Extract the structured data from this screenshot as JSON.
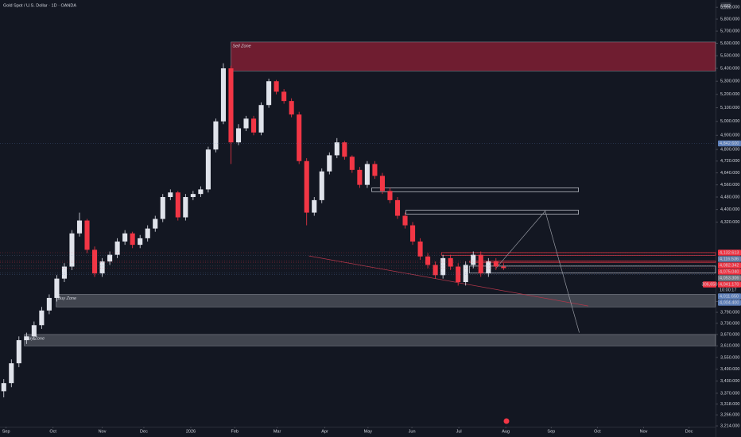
{
  "chart_data": {
    "type": "candlestick",
    "title": "Gold Spot / U.S. Dollar · 1D · OANDA",
    "currency": "USD",
    "log_scale": true,
    "up_color": "#e0e3eb",
    "down_color": "#f23645",
    "open": [
      3380,
      3420,
      3520,
      3640,
      3660,
      3720,
      3800,
      3870,
      3980,
      4050,
      4250,
      4330,
      4150,
      4010,
      4080,
      4120,
      4200,
      4250,
      4180,
      4220,
      4280,
      4340,
      4480,
      4510,
      4350,
      4480,
      4500,
      4530,
      4800,
      5000,
      5400,
      4850,
      4950,
      5020,
      4920,
      5120,
      5300,
      5220,
      5150,
      5050,
      4720,
      4380,
      4460,
      4650,
      4760,
      4850,
      4750,
      4660,
      4560,
      4700,
      4620,
      4520,
      4460,
      4360,
      4300,
      4200,
      4110,
      4060,
      4000,
      4100,
      4050,
      3960,
      4060,
      4120,
      4010,
      4080,
      4050
    ],
    "high": [
      3440,
      3540,
      3660,
      3680,
      3740,
      3820,
      3890,
      4000,
      4070,
      4270,
      4380,
      4340,
      4170,
      4100,
      4140,
      4220,
      4270,
      4260,
      4240,
      4300,
      4360,
      4500,
      4530,
      4520,
      4500,
      4520,
      4550,
      4820,
      5020,
      5440,
      5420,
      4980,
      5040,
      5040,
      5140,
      5320,
      5310,
      5240,
      5170,
      5070,
      4740,
      4480,
      4670,
      4780,
      4880,
      4860,
      4760,
      4680,
      4720,
      4720,
      4640,
      4540,
      4480,
      4380,
      4320,
      4220,
      4130,
      4080,
      4120,
      4120,
      4070,
      4080,
      4140,
      4140,
      4100,
      4100,
      4070
    ],
    "low": [
      3350,
      3400,
      3500,
      3620,
      3640,
      3700,
      3780,
      3850,
      3960,
      4030,
      4230,
      4130,
      3990,
      3990,
      4060,
      4100,
      4180,
      4160,
      4160,
      4200,
      4260,
      4320,
      4460,
      4330,
      4330,
      4460,
      4480,
      4510,
      4780,
      4980,
      4700,
      4830,
      4930,
      4900,
      4900,
      5100,
      5200,
      5130,
      5030,
      4700,
      4300,
      4360,
      4440,
      4630,
      4740,
      4730,
      4640,
      4540,
      4540,
      4600,
      4500,
      4440,
      4340,
      4280,
      4180,
      4090,
      4040,
      3980,
      3980,
      4030,
      3940,
      3940,
      4040,
      3990,
      3990,
      4030,
      4030
    ],
    "close": [
      3420,
      3520,
      3640,
      3660,
      3720,
      3800,
      3870,
      3980,
      4050,
      4250,
      4330,
      4150,
      4010,
      4080,
      4120,
      4200,
      4250,
      4180,
      4220,
      4280,
      4340,
      4480,
      4510,
      4350,
      4480,
      4500,
      4530,
      4800,
      5000,
      5400,
      4850,
      4950,
      5020,
      4920,
      5120,
      5300,
      5220,
      5150,
      5050,
      4720,
      4380,
      4460,
      4650,
      4760,
      4850,
      4750,
      4660,
      4560,
      4700,
      4620,
      4520,
      4460,
      4360,
      4300,
      4200,
      4110,
      4060,
      4000,
      4100,
      4050,
      3960,
      4060,
      4120,
      4010,
      4080,
      4050,
      4041.17
    ],
    "xlim": [
      -0.5,
      94
    ],
    "xticks": [
      {
        "value": 0.3,
        "label": "Sep"
      },
      {
        "value": 6.5,
        "label": "Oct"
      },
      {
        "value": 13,
        "label": "Nov"
      },
      {
        "value": 18.5,
        "label": "Dec"
      },
      {
        "value": 24.7,
        "label": "2026"
      },
      {
        "value": 30.5,
        "label": "Feb"
      },
      {
        "value": 36.1,
        "label": "Mar"
      },
      {
        "value": 42.4,
        "label": "Apr"
      },
      {
        "value": 48.1,
        "label": "May"
      },
      {
        "value": 53.9,
        "label": "Jun"
      },
      {
        "value": 60.1,
        "label": "Jul"
      },
      {
        "value": 66.3,
        "label": "Aug"
      },
      {
        "value": 72.3,
        "label": "Sep"
      },
      {
        "value": 78.4,
        "label": "Oct"
      },
      {
        "value": 84.5,
        "label": "Nov"
      },
      {
        "value": 90.5,
        "label": "Dec"
      }
    ],
    "ylim": [
      3181,
      5963
    ],
    "yticks": [
      {
        "value": 5900,
        "label": "5,900.000"
      },
      {
        "value": 5800,
        "label": "5,800.000"
      },
      {
        "value": 5700,
        "label": "5,700.000"
      },
      {
        "value": 5600,
        "label": "5,600.000"
      },
      {
        "value": 5500,
        "label": "5,500.000"
      },
      {
        "value": 5400,
        "label": "5,400.000"
      },
      {
        "value": 5300,
        "label": "5,300.000"
      },
      {
        "value": 5200,
        "label": "5,200.000"
      },
      {
        "value": 5100,
        "label": "5,100.000"
      },
      {
        "value": 5000,
        "label": "5,000.000"
      },
      {
        "value": 4900,
        "label": "4,900.000"
      },
      {
        "value": 4800,
        "label": "4,800.000"
      },
      {
        "value": 4720,
        "label": "4,720.000"
      },
      {
        "value": 4640,
        "label": "4,640.000"
      },
      {
        "value": 4560,
        "label": "4,560.000"
      },
      {
        "value": 4480,
        "label": "4,480.000"
      },
      {
        "value": 4400,
        "label": "4,400.000"
      },
      {
        "value": 4320,
        "label": "4,320.000"
      },
      {
        "value": 3850,
        "label": "3,850.000"
      },
      {
        "value": 3790,
        "label": "3,790.000"
      },
      {
        "value": 3730,
        "label": "3,730.000"
      },
      {
        "value": 3670,
        "label": "3,670.000"
      },
      {
        "value": 3610,
        "label": "3,610.000"
      },
      {
        "value": 3550,
        "label": "3,550.000"
      },
      {
        "value": 3490,
        "label": "3,490.000"
      },
      {
        "value": 3430,
        "label": "3,430.000"
      },
      {
        "value": 3370,
        "label": "3,370.000"
      },
      {
        "value": 3318,
        "label": "3,318.000"
      },
      {
        "value": 3266,
        "label": "3,266.000"
      },
      {
        "value": 3214,
        "label": "3,214.000"
      }
    ],
    "zones": [
      {
        "label": "Sell Zone",
        "top": 5610,
        "bottom": 5380,
        "start": 30,
        "color": "#801f33"
      },
      {
        "label": "Buy Zone",
        "top": 3890,
        "bottom": 3820,
        "start": 6.9,
        "color": "#4a4d57"
      },
      {
        "label": "Buy Zone",
        "top": 3670,
        "bottom": 3610,
        "start": 2.7,
        "color": "#4a4d57"
      }
    ],
    "boxes": [
      {
        "top": 4540,
        "bottom": 4515,
        "start": 48.6,
        "end": 75.9,
        "color": "#d1d4dc"
      },
      {
        "top": 4395,
        "bottom": 4370,
        "start": 53.1,
        "end": 75.9,
        "color": "#d1d4dc"
      },
      {
        "top": 4133,
        "bottom": 4117,
        "start": 57.8,
        "end": 94,
        "color": "#f23645"
      },
      {
        "top": 4082,
        "bottom": 4075,
        "start": 61.5,
        "end": 94,
        "color": "#f23645"
      },
      {
        "top": 4053,
        "bottom": 4012,
        "start": 61.5,
        "end": 94,
        "color": "#d1d4dc"
      }
    ],
    "projection": {
      "x": [
        65,
        71.5,
        76
      ],
      "y": [
        4040,
        4390,
        3680
      ],
      "color": "#9598a1"
    },
    "trendline": {
      "x": [
        40.3,
        77.2
      ],
      "y": [
        4113,
        3825
      ],
      "color": "#b2374a"
    },
    "price_labels": [
      {
        "value": 4842.6,
        "label": "4,842.600",
        "color": "#5d7fb8"
      },
      {
        "value": 4132.613,
        "label": "4,132.613",
        "color": "#f23645"
      },
      {
        "value": 4116.536,
        "label": "4,116.536",
        "color": "#6a7fa8"
      },
      {
        "value": 4082.342,
        "label": "4,082.342",
        "color": "#f23645"
      },
      {
        "value": 4075.04,
        "label": "4,075.040",
        "color": "#f23645"
      },
      {
        "value": 4053.306,
        "label": "4,053.306",
        "color": "#787b86"
      },
      {
        "value": 4041.17,
        "label": "4,041.170",
        "color": "#f23645"
      },
      {
        "value": 4011.65,
        "label": "4,011.650",
        "color": "#5d7fb8"
      },
      {
        "value": 4004.4,
        "label": "4,004.400",
        "color": "#5d7fb8"
      }
    ],
    "countdown": "10:00:17",
    "badge": "306,650"
  }
}
